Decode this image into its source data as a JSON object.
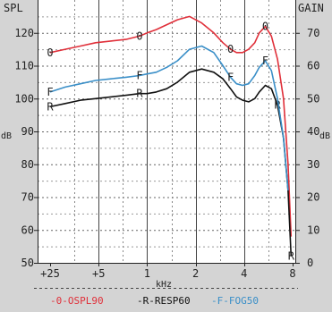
{
  "chart_data": {
    "type": "line",
    "left_axis_label": "SPL",
    "right_axis_label": "GAIN",
    "left_unit": "dB",
    "right_unit": "dB",
    "x_unit": "kHz",
    "x_tick_labels": [
      "+25",
      "+5",
      "1",
      "2",
      "4",
      "8"
    ],
    "x_domain": [
      0,
      8
    ],
    "left_ticks": [
      50,
      60,
      70,
      80,
      90,
      100,
      110,
      120
    ],
    "left_ylim": [
      50,
      130
    ],
    "right_ticks": [
      0,
      10,
      20,
      30,
      40,
      50,
      60,
      70
    ],
    "right_ylim": [
      0,
      80
    ],
    "grid": true,
    "series": [
      {
        "name": "-0-OSPL90",
        "marker": "0",
        "color": "#e0303a",
        "x": [
          0.0,
          0.5,
          1.0,
          1.5,
          2.0,
          2.5,
          2.95,
          3.2,
          3.5,
          3.85,
          4.2,
          4.6,
          5.0,
          5.4,
          5.7,
          5.95,
          6.15,
          6.35,
          6.55,
          6.75,
          6.9,
          7.1,
          7.3,
          7.5,
          7.7,
          7.85,
          7.95
        ],
        "y": [
          114,
          115,
          116,
          117,
          117.5,
          118,
          119,
          120,
          121,
          122.5,
          124,
          125,
          123,
          120,
          117,
          115,
          114,
          114,
          115,
          117,
          120,
          122,
          119,
          112,
          100,
          80,
          58
        ],
        "markers_at": [
          0.0,
          2.95,
          5.95,
          7.1
        ]
      },
      {
        "name": "-R-RESP60",
        "marker": "R",
        "color": "#111111",
        "x": [
          0.0,
          0.5,
          1.0,
          1.5,
          2.0,
          2.5,
          2.95,
          3.2,
          3.5,
          3.85,
          4.2,
          4.6,
          5.0,
          5.4,
          5.7,
          5.95,
          6.15,
          6.35,
          6.55,
          6.75,
          6.9,
          7.1,
          7.3,
          7.5,
          7.7,
          7.85,
          7.95
        ],
        "y": [
          97.5,
          98.5,
          99.5,
          100,
          100.5,
          101,
          101.5,
          101.5,
          102,
          103,
          105,
          108,
          109,
          108,
          106,
          103,
          100.5,
          99.5,
          99,
          100,
          102,
          104,
          103,
          98,
          88,
          72,
          52
        ],
        "markers_at": [
          0.0,
          2.95,
          7.5,
          7.95
        ]
      },
      {
        "name": "-F-FOG50",
        "marker": "F",
        "color": "#3a8fc8",
        "x": [
          0.0,
          0.5,
          1.0,
          1.5,
          2.0,
          2.5,
          2.95,
          3.2,
          3.5,
          3.85,
          4.2,
          4.6,
          5.0,
          5.4,
          5.7,
          5.95,
          6.15,
          6.35,
          6.55,
          6.75,
          6.9,
          7.1,
          7.3,
          7.5,
          7.7,
          7.85
        ],
        "y": [
          102,
          103.5,
          104.5,
          105.5,
          106,
          106.5,
          107,
          107.5,
          108,
          109.5,
          111.5,
          115,
          116,
          114,
          110,
          106.5,
          104.5,
          104,
          104.5,
          107,
          109.5,
          111.5,
          108.5,
          100,
          88,
          72
        ],
        "markers_at": [
          0.0,
          2.95,
          5.95,
          7.1
        ]
      }
    ]
  }
}
